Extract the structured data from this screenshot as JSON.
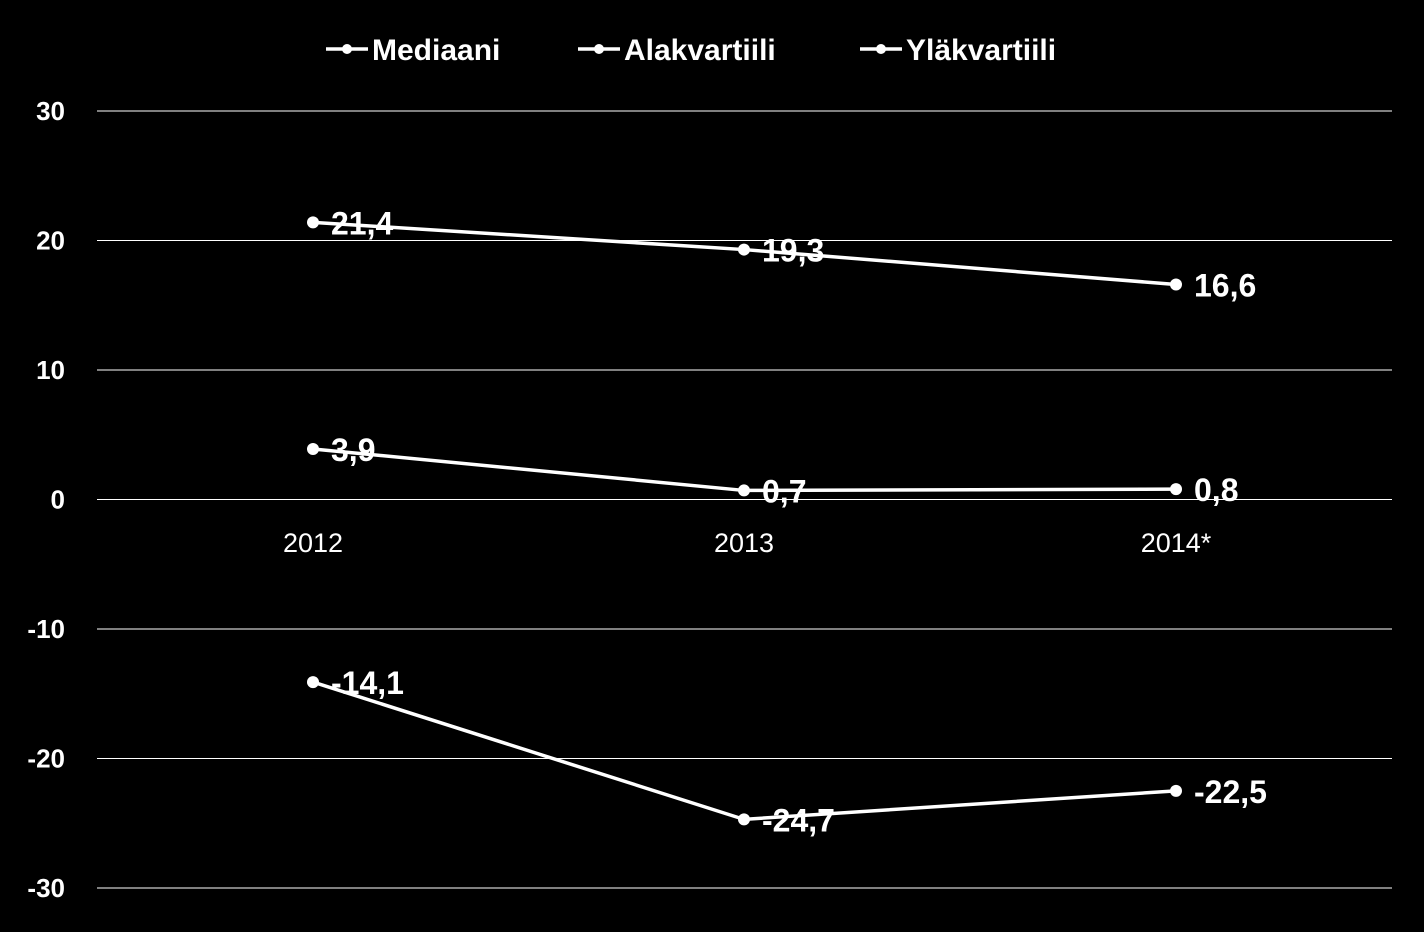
{
  "chart_data": {
    "type": "line",
    "categories": [
      "2012",
      "2013",
      "2014*"
    ],
    "series": [
      {
        "name": "Mediaani",
        "values": [
          3.9,
          0.7,
          0.8
        ],
        "labels": [
          "3,9",
          "0,7",
          "0,8"
        ]
      },
      {
        "name": "Alakvartiili",
        "values": [
          -14.1,
          -24.7,
          -22.5
        ],
        "labels": [
          "-14,1",
          "-24,7",
          "-22,5"
        ]
      },
      {
        "name": "Yläkvartiili",
        "values": [
          21.4,
          19.3,
          16.6
        ],
        "labels": [
          "21,4",
          "19,3",
          "16,6"
        ]
      }
    ],
    "y_ticks": [
      "30",
      "20",
      "10",
      "0",
      "-10",
      "-20",
      "-30"
    ],
    "ylim": [
      -30,
      30
    ],
    "grid": true,
    "legend_position": "top-center",
    "colors": {
      "background": "#000000",
      "line": "#ffffff",
      "grid": "#ffffff",
      "text": "#ffffff"
    }
  }
}
